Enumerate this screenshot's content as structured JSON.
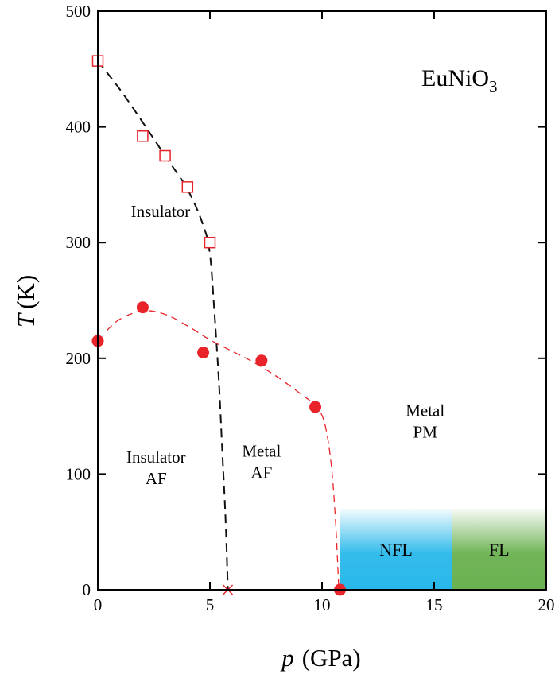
{
  "chart_data": {
    "type": "scatter",
    "title": "EuNiO",
    "title_subscript": "3",
    "xlabel_var": "p",
    "xlabel_unit": "(GPa)",
    "ylabel_var": "T",
    "ylabel_unit": "(K)",
    "xlim": [
      0,
      20
    ],
    "ylim": [
      0,
      500
    ],
    "x_ticks": [
      0,
      5,
      10,
      15,
      20
    ],
    "y_ticks": [
      0,
      100,
      200,
      300,
      400,
      500
    ],
    "x_tick_labels": [
      "0",
      "5",
      "10",
      "15",
      "20"
    ],
    "y_tick_labels": [
      "0",
      "100",
      "200",
      "300",
      "400",
      "500"
    ],
    "grid": false,
    "legend": "none",
    "series": [
      {
        "marker": "open-square",
        "color": "#e8242a",
        "points": [
          [
            0,
            457
          ],
          [
            2,
            392
          ],
          [
            3,
            375
          ],
          [
            4,
            348
          ],
          [
            5,
            300
          ]
        ]
      },
      {
        "marker": "filled-circle",
        "color": "#e8242a",
        "points": [
          [
            0,
            215
          ],
          [
            2,
            244
          ],
          [
            4.7,
            205
          ],
          [
            7.3,
            198
          ],
          [
            9.7,
            158
          ],
          [
            10.8,
            0
          ]
        ]
      },
      {
        "marker": "x",
        "color": "#e8242a",
        "points": [
          [
            5.8,
            0
          ]
        ]
      }
    ],
    "curves": [
      {
        "style": "dashed",
        "color": "#111111",
        "points": [
          [
            0,
            457
          ],
          [
            1,
            432
          ],
          [
            2,
            404
          ],
          [
            3,
            375
          ],
          [
            4,
            346
          ],
          [
            4.7,
            315
          ],
          [
            5.0,
            290
          ],
          [
            5.2,
            240
          ],
          [
            5.4,
            180
          ],
          [
            5.55,
            120
          ],
          [
            5.7,
            60
          ],
          [
            5.8,
            0
          ]
        ]
      },
      {
        "style": "dashed",
        "color": "#e8242a",
        "points": [
          [
            0.4,
            224
          ],
          [
            1,
            234
          ],
          [
            2,
            241
          ],
          [
            3,
            238
          ],
          [
            4,
            228
          ],
          [
            5,
            216
          ],
          [
            6,
            206
          ],
          [
            7,
            196
          ],
          [
            8,
            184
          ],
          [
            9,
            170
          ],
          [
            9.7,
            159
          ],
          [
            10.1,
            145
          ],
          [
            10.4,
            110
          ],
          [
            10.6,
            60
          ],
          [
            10.75,
            0
          ]
        ]
      }
    ],
    "regions": [
      {
        "label": "NFL",
        "x": [
          10.8,
          15.8
        ],
        "y": [
          0,
          70
        ],
        "color": "#29b8ea"
      },
      {
        "label": "FL",
        "x": [
          15.8,
          20
        ],
        "y": [
          0,
          70
        ],
        "color": "#6ab150"
      }
    ],
    "annotations": [
      {
        "lines": [
          "Insulator"
        ],
        "x": 2.8,
        "y": 322
      },
      {
        "lines": [
          "Insulator",
          "AF"
        ],
        "x": 2.6,
        "y": 110
      },
      {
        "lines": [
          "Metal",
          "AF"
        ],
        "x": 7.3,
        "y": 115
      },
      {
        "lines": [
          "Metal",
          "PM"
        ],
        "x": 14.6,
        "y": 150
      }
    ]
  }
}
